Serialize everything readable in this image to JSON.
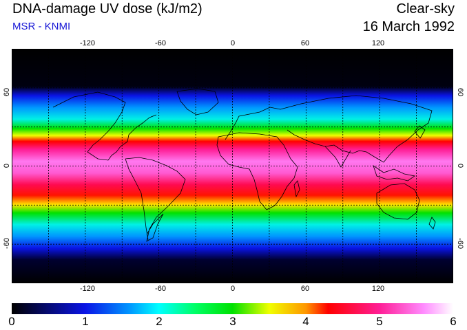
{
  "header": {
    "title": "DNA-damage UV dose (kJ/m2)",
    "subtitle": "MSR - KNMI",
    "condition": "Clear-sky",
    "date": "16 March 1992"
  },
  "map": {
    "lon_range": [
      -180,
      180
    ],
    "lat_range": [
      -90,
      90
    ],
    "lon_ticks": [
      "-120",
      "-60",
      "0",
      "60",
      "120"
    ],
    "lat_ticks": [
      "60",
      "0",
      "-60"
    ],
    "grid_lons": [
      -150,
      -120,
      -90,
      -60,
      -30,
      0,
      30,
      60,
      90,
      120,
      150
    ],
    "grid_lats": [
      -60,
      -30,
      0,
      30,
      60
    ],
    "grid": true,
    "coastline_color": "#000000"
  },
  "colorbar": {
    "min": 0,
    "max": 6,
    "ticks": [
      "0",
      "1",
      "2",
      "3",
      "4",
      "5",
      "6"
    ],
    "stops": [
      {
        "v": 0.0,
        "c": "#000000"
      },
      {
        "v": 1.0,
        "c": "#0a14e6"
      },
      {
        "v": 1.6,
        "c": "#0096ff"
      },
      {
        "v": 2.0,
        "c": "#00ffff"
      },
      {
        "v": 2.5,
        "c": "#00ff64"
      },
      {
        "v": 3.0,
        "c": "#00e100"
      },
      {
        "v": 3.5,
        "c": "#f0ff00"
      },
      {
        "v": 4.0,
        "c": "#ff9600"
      },
      {
        "v": 4.3,
        "c": "#ff0000"
      },
      {
        "v": 5.0,
        "c": "#ff1e96"
      },
      {
        "v": 5.6,
        "c": "#ff8cff"
      },
      {
        "v": 6.0,
        "c": "#ffffff"
      }
    ]
  }
}
